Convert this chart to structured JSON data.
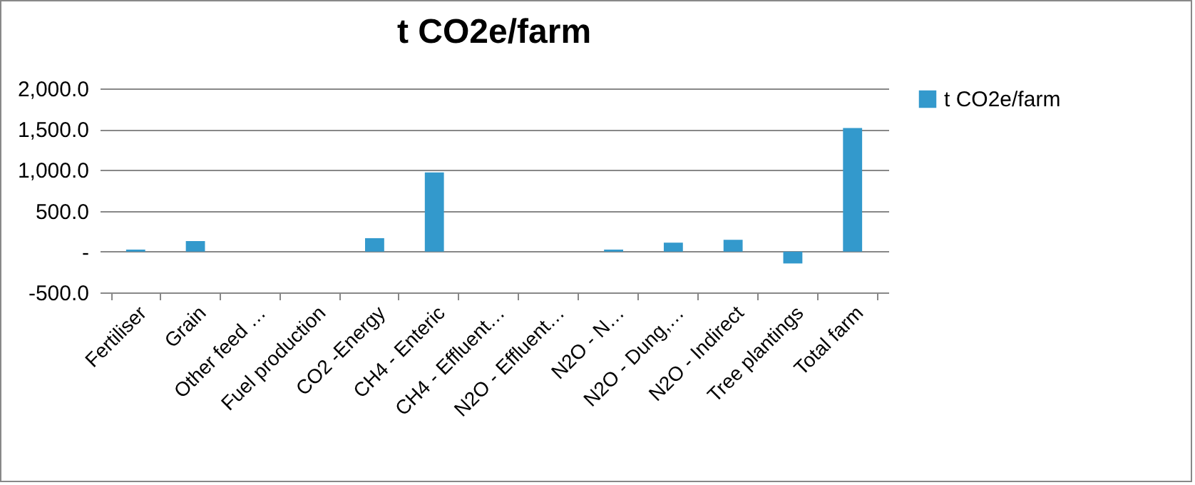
{
  "chart_data": {
    "type": "bar",
    "title": "t CO2e/farm",
    "categories": [
      "Fertiliser",
      "Grain",
      "Other feed …",
      "Fuel production",
      "CO2 -Energy",
      "CH4 - Enteric",
      "CH4 - Effluent…",
      "N2O - Effluent…",
      "N2O - N…",
      "N2O - Dung,…",
      "N2O - Indirect",
      "Tree plantings",
      "Total farm"
    ],
    "series": [
      {
        "name": "t CO2e/farm",
        "color": "#3399cc",
        "values": [
          25,
          130,
          0,
          0,
          165,
          970,
          0,
          0,
          25,
          110,
          145,
          -145,
          1515
        ]
      }
    ],
    "ylim": [
      -500,
      2000
    ],
    "yticks": [
      {
        "value": -500,
        "label": "-500.0"
      },
      {
        "value": 0,
        "label": "-"
      },
      {
        "value": 500,
        "label": "500.0"
      },
      {
        "value": 1000,
        "label": "1,000.0"
      },
      {
        "value": 1500,
        "label": "1,500.0"
      },
      {
        "value": 2000,
        "label": "2,000.0"
      }
    ],
    "grid": "y",
    "legend": "right"
  }
}
